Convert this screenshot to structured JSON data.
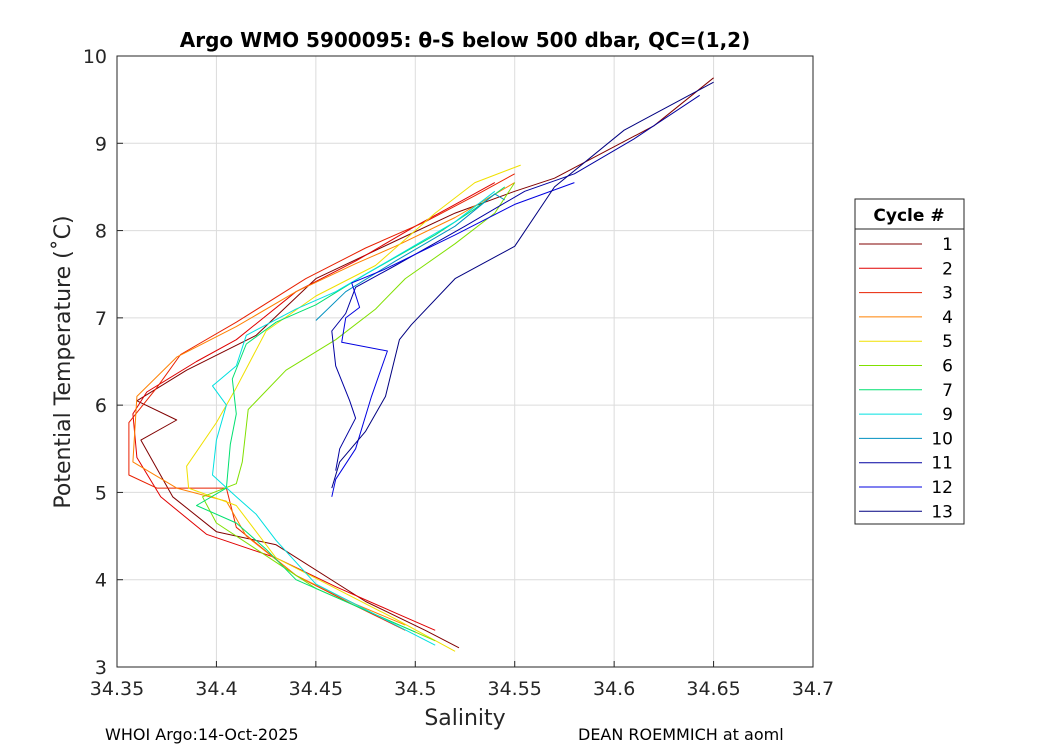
{
  "chart_data": {
    "type": "line",
    "title": "Argo WMO 5900095: θ-S below 500 dbar,  QC=(1,2)",
    "xlabel": "Salinity",
    "ylabel": "Potential Temperature (˚C)",
    "xlim": [
      34.35,
      34.7
    ],
    "ylim": [
      3,
      10
    ],
    "xticks": [
      "34.35",
      "34.4",
      "34.45",
      "34.5",
      "34.55",
      "34.6",
      "34.65",
      "34.7"
    ],
    "yticks": [
      "3",
      "4",
      "5",
      "6",
      "7",
      "8",
      "9",
      "10"
    ],
    "grid": true,
    "legend_title": "Cycle #",
    "legend_position": "right",
    "series": [
      {
        "name": "1",
        "color": "#800000",
        "points": [
          [
            34.522,
            3.22
          ],
          [
            34.505,
            3.42
          ],
          [
            34.475,
            3.75
          ],
          [
            34.43,
            4.4
          ],
          [
            34.4,
            4.55
          ],
          [
            34.378,
            4.95
          ],
          [
            34.362,
            5.6
          ],
          [
            34.38,
            5.83
          ],
          [
            34.36,
            6.05
          ],
          [
            34.385,
            6.4
          ],
          [
            34.42,
            6.8
          ],
          [
            34.45,
            7.45
          ],
          [
            34.49,
            7.88
          ],
          [
            34.52,
            8.2
          ],
          [
            34.55,
            8.45
          ],
          [
            34.57,
            8.6
          ],
          [
            34.62,
            9.2
          ],
          [
            34.65,
            9.75
          ]
        ]
      },
      {
        "name": "2",
        "color": "#e00000",
        "points": [
          [
            34.51,
            3.42
          ],
          [
            34.49,
            3.62
          ],
          [
            34.46,
            3.92
          ],
          [
            34.43,
            4.25
          ],
          [
            34.395,
            4.52
          ],
          [
            34.372,
            4.95
          ],
          [
            34.36,
            5.4
          ],
          [
            34.358,
            5.9
          ],
          [
            34.365,
            6.15
          ],
          [
            34.39,
            6.5
          ],
          [
            34.41,
            6.75
          ],
          [
            34.44,
            7.3
          ],
          [
            34.47,
            7.65
          ],
          [
            34.5,
            8.05
          ],
          [
            34.52,
            8.3
          ],
          [
            34.54,
            8.55
          ]
        ]
      },
      {
        "name": "3",
        "color": "#e82000",
        "points": [
          [
            34.495,
            3.42
          ],
          [
            34.47,
            3.7
          ],
          [
            34.44,
            4.05
          ],
          [
            34.41,
            4.6
          ],
          [
            34.405,
            5.05
          ],
          [
            34.37,
            5.05
          ],
          [
            34.356,
            5.2
          ],
          [
            34.356,
            5.8
          ],
          [
            34.37,
            6.2
          ],
          [
            34.382,
            6.58
          ],
          [
            34.41,
            6.95
          ],
          [
            34.445,
            7.45
          ],
          [
            34.475,
            7.8
          ],
          [
            34.505,
            8.1
          ],
          [
            34.53,
            8.4
          ],
          [
            34.55,
            8.65
          ]
        ]
      },
      {
        "name": "4",
        "color": "#ff8000",
        "points": [
          [
            34.495,
            3.48
          ],
          [
            34.47,
            3.72
          ],
          [
            34.44,
            4.05
          ],
          [
            34.415,
            4.5
          ],
          [
            34.405,
            4.9
          ],
          [
            34.38,
            5.05
          ],
          [
            34.358,
            5.35
          ],
          [
            34.36,
            6.1
          ],
          [
            34.38,
            6.55
          ],
          [
            34.41,
            6.9
          ],
          [
            34.44,
            7.3
          ],
          [
            34.47,
            7.62
          ],
          [
            34.49,
            7.82
          ],
          [
            34.52,
            8.15
          ],
          [
            34.55,
            8.55
          ]
        ]
      },
      {
        "name": "5",
        "color": "#f0e000",
        "points": [
          [
            34.52,
            3.18
          ],
          [
            34.49,
            3.55
          ],
          [
            34.46,
            3.9
          ],
          [
            34.43,
            4.25
          ],
          [
            34.41,
            4.85
          ],
          [
            34.386,
            5.05
          ],
          [
            34.385,
            5.3
          ],
          [
            34.4,
            5.8
          ],
          [
            34.41,
            6.2
          ],
          [
            34.425,
            6.85
          ],
          [
            34.45,
            7.25
          ],
          [
            34.48,
            7.6
          ],
          [
            34.51,
            8.2
          ],
          [
            34.53,
            8.55
          ],
          [
            34.553,
            8.75
          ]
        ]
      },
      {
        "name": "6",
        "color": "#80e000",
        "points": [
          [
            34.51,
            3.3
          ],
          [
            34.48,
            3.6
          ],
          [
            34.45,
            3.9
          ],
          [
            34.43,
            4.2
          ],
          [
            34.4,
            4.65
          ],
          [
            34.393,
            4.95
          ],
          [
            34.41,
            5.1
          ],
          [
            34.413,
            5.35
          ],
          [
            34.416,
            5.95
          ],
          [
            34.435,
            6.4
          ],
          [
            34.46,
            6.75
          ],
          [
            34.48,
            7.1
          ],
          [
            34.495,
            7.45
          ],
          [
            34.52,
            7.85
          ],
          [
            34.54,
            8.2
          ],
          [
            34.55,
            8.55
          ]
        ]
      },
      {
        "name": "7",
        "color": "#00e070",
        "points": [
          [
            34.5,
            3.4
          ],
          [
            34.47,
            3.7
          ],
          [
            34.44,
            4.0
          ],
          [
            34.425,
            4.35
          ],
          [
            34.41,
            4.65
          ],
          [
            34.39,
            4.85
          ],
          [
            34.405,
            5.05
          ],
          [
            34.407,
            5.55
          ],
          [
            34.41,
            5.9
          ],
          [
            34.408,
            6.3
          ],
          [
            34.415,
            6.7
          ],
          [
            34.43,
            6.95
          ],
          [
            34.45,
            7.15
          ],
          [
            34.475,
            7.5
          ],
          [
            34.51,
            7.95
          ],
          [
            34.53,
            8.25
          ],
          [
            34.545,
            8.5
          ]
        ]
      },
      {
        "name": "9",
        "color": "#00e0e0",
        "points": [
          [
            34.51,
            3.25
          ],
          [
            34.48,
            3.6
          ],
          [
            34.45,
            3.95
          ],
          [
            34.43,
            4.45
          ],
          [
            34.42,
            4.75
          ],
          [
            34.41,
            4.95
          ],
          [
            34.398,
            5.2
          ],
          [
            34.4,
            5.6
          ],
          [
            34.405,
            6.0
          ],
          [
            34.398,
            6.22
          ],
          [
            34.41,
            6.45
          ],
          [
            34.415,
            6.8
          ],
          [
            34.44,
            7.1
          ],
          [
            34.46,
            7.3
          ],
          [
            34.49,
            7.7
          ],
          [
            34.52,
            8.1
          ],
          [
            34.54,
            8.45
          ]
        ]
      },
      {
        "name": "10",
        "color": "#0090c0",
        "points": [
          [
            34.45,
            6.97
          ],
          [
            34.465,
            7.3
          ],
          [
            34.49,
            7.65
          ],
          [
            34.52,
            8.05
          ],
          [
            34.54,
            8.42
          ],
          [
            34.545,
            8.35
          ]
        ]
      },
      {
        "name": "11",
        "color": "#0000a0",
        "points": [
          [
            34.46,
            5.25
          ],
          [
            34.462,
            5.5
          ],
          [
            34.47,
            5.85
          ],
          [
            34.467,
            6.05
          ],
          [
            34.46,
            6.45
          ],
          [
            34.458,
            6.85
          ],
          [
            34.465,
            7.05
          ],
          [
            34.47,
            7.35
          ],
          [
            34.49,
            7.6
          ],
          [
            34.525,
            8.05
          ],
          [
            34.555,
            8.45
          ],
          [
            34.58,
            8.65
          ],
          [
            34.61,
            9.05
          ],
          [
            34.643,
            9.55
          ]
        ]
      },
      {
        "name": "12",
        "color": "#0000e0",
        "points": [
          [
            34.458,
            4.95
          ],
          [
            34.46,
            5.15
          ],
          [
            34.47,
            5.5
          ],
          [
            34.478,
            6.1
          ],
          [
            34.486,
            6.62
          ],
          [
            34.463,
            6.72
          ],
          [
            34.465,
            7.0
          ],
          [
            34.472,
            7.12
          ],
          [
            34.468,
            7.4
          ],
          [
            34.484,
            7.55
          ],
          [
            34.52,
            7.95
          ],
          [
            34.55,
            8.3
          ],
          [
            34.58,
            8.55
          ]
        ]
      },
      {
        "name": "13",
        "color": "#000080",
        "points": [
          [
            34.458,
            5.05
          ],
          [
            34.462,
            5.35
          ],
          [
            34.475,
            5.7
          ],
          [
            34.485,
            6.1
          ],
          [
            34.492,
            6.75
          ],
          [
            34.498,
            6.92
          ],
          [
            34.52,
            7.45
          ],
          [
            34.55,
            7.82
          ],
          [
            34.57,
            8.5
          ],
          [
            34.605,
            9.15
          ],
          [
            34.65,
            9.7
          ]
        ]
      }
    ]
  },
  "footer": {
    "left": "WHOI Argo:14-Oct-2025",
    "right": "DEAN ROEMMICH at aoml"
  }
}
